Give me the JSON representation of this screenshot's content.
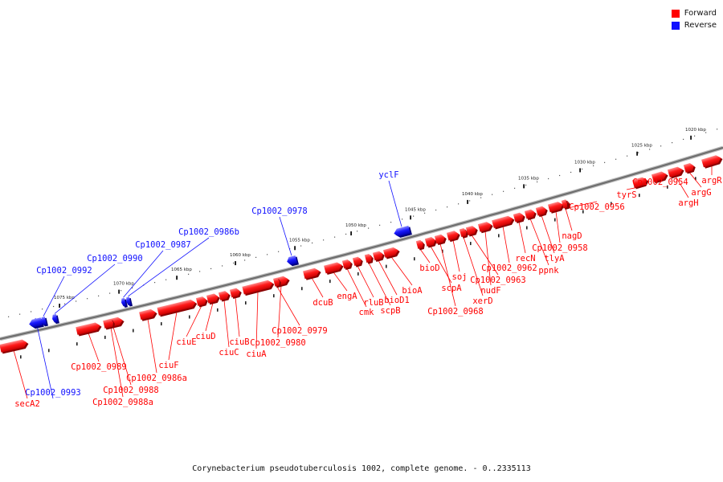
{
  "legend": {
    "forward_label": "Forward",
    "reverse_label": "Reverse",
    "forward_color": "#ff0000",
    "reverse_color": "#1010ff"
  },
  "caption": "Corynebacterium pseudotuberculosis 1002, complete genome. - 0..2335113",
  "scale_labels": [
    "1020 kbp",
    "1025 kbp",
    "1030 kbp",
    "1035 kbp",
    "1040 kbp",
    "1045 kbp",
    "1050 kbp",
    "1055 kbp",
    "1060 kbp",
    "1065 kbp",
    "1070 kbp",
    "1075 kbp"
  ],
  "genes": [
    {
      "name": "secA2",
      "strand": "forward"
    },
    {
      "name": "Cp1002_0993",
      "strand": "reverse"
    },
    {
      "name": "Cp1002_0992",
      "strand": "reverse"
    },
    {
      "name": "Cp1002_0990",
      "strand": "reverse"
    },
    {
      "name": "Cp1002_0989",
      "strand": "forward"
    },
    {
      "name": "Cp1002_0988",
      "strand": "forward"
    },
    {
      "name": "Cp1002_0988a",
      "strand": "forward"
    },
    {
      "name": "Cp1002_0987",
      "strand": "reverse"
    },
    {
      "name": "Cp1002_0986b",
      "strand": "reverse"
    },
    {
      "name": "Cp1002_0986a",
      "strand": "forward"
    },
    {
      "name": "ciuF",
      "strand": "forward"
    },
    {
      "name": "ciuE",
      "strand": "forward"
    },
    {
      "name": "ciuD",
      "strand": "forward"
    },
    {
      "name": "ciuC",
      "strand": "forward"
    },
    {
      "name": "ciuB",
      "strand": "forward"
    },
    {
      "name": "ciuA",
      "strand": "forward"
    },
    {
      "name": "Cp1002_0980",
      "strand": "forward"
    },
    {
      "name": "Cp1002_0979",
      "strand": "forward"
    },
    {
      "name": "Cp1002_0978",
      "strand": "reverse"
    },
    {
      "name": "dcuB",
      "strand": "forward"
    },
    {
      "name": "engA",
      "strand": "forward"
    },
    {
      "name": "cmk",
      "strand": "forward"
    },
    {
      "name": "rluB",
      "strand": "forward"
    },
    {
      "name": "scpB",
      "strand": "forward"
    },
    {
      "name": "bioD1",
      "strand": "forward"
    },
    {
      "name": "bioA",
      "strand": "forward"
    },
    {
      "name": "yclF",
      "strand": "reverse"
    },
    {
      "name": "bioD",
      "strand": "forward"
    },
    {
      "name": "scpA",
      "strand": "forward"
    },
    {
      "name": "Cp1002_0968",
      "strand": "forward"
    },
    {
      "name": "soj",
      "strand": "forward"
    },
    {
      "name": "xerD",
      "strand": "forward"
    },
    {
      "name": "Cp1002_0963",
      "strand": "forward"
    },
    {
      "name": "nudF",
      "strand": "forward"
    },
    {
      "name": "Cp1002_0962",
      "strand": "forward"
    },
    {
      "name": "recN",
      "strand": "forward"
    },
    {
      "name": "ppnk",
      "strand": "forward"
    },
    {
      "name": "tlyA",
      "strand": "forward"
    },
    {
      "name": "Cp1002_0958",
      "strand": "forward"
    },
    {
      "name": "nagD",
      "strand": "forward"
    },
    {
      "name": "Cp1002_0956",
      "strand": "forward"
    },
    {
      "name": "tyrS",
      "strand": "forward"
    },
    {
      "name": "Cp1002_0954",
      "strand": "forward"
    },
    {
      "name": "argH",
      "strand": "forward"
    },
    {
      "name": "argG",
      "strand": "forward"
    },
    {
      "name": "argR",
      "strand": "forward"
    }
  ]
}
